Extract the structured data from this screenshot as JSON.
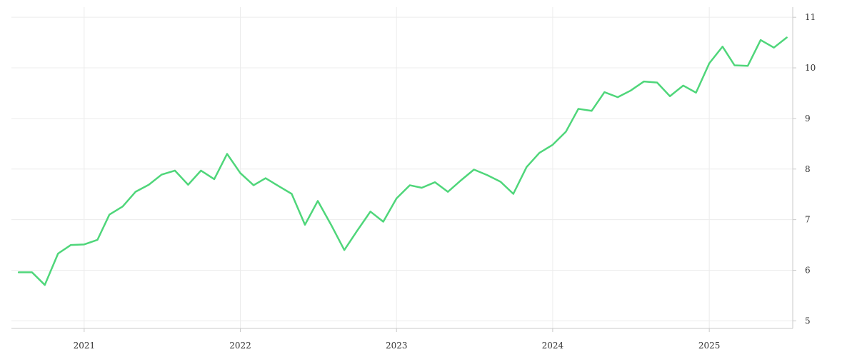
{
  "chart_data": {
    "type": "line",
    "title": "",
    "xlabel": "",
    "ylabel": "",
    "x_ticks": [
      "2021",
      "2022",
      "2023",
      "2024",
      "2025"
    ],
    "y_ticks": [
      5,
      6,
      7,
      8,
      9,
      10,
      11
    ],
    "ylim": [
      4.85,
      11.2
    ],
    "xlim": [
      "2020-07-15",
      "2025-07-15"
    ],
    "y_axis_position": "right",
    "grid": true,
    "legend": "none",
    "series": [
      {
        "color": "#4fd67a",
        "points": [
          [
            "2020-08-01",
            5.96
          ],
          [
            "2020-09-01",
            5.96
          ],
          [
            "2020-10-01",
            5.71
          ],
          [
            "2020-11-01",
            6.33
          ],
          [
            "2020-12-01",
            6.5
          ],
          [
            "2021-01-01",
            6.51
          ],
          [
            "2021-02-01",
            6.6
          ],
          [
            "2021-03-01",
            7.1
          ],
          [
            "2021-04-01",
            7.26
          ],
          [
            "2021-05-01",
            7.55
          ],
          [
            "2021-06-01",
            7.69
          ],
          [
            "2021-07-01",
            7.89
          ],
          [
            "2021-08-01",
            7.97
          ],
          [
            "2021-09-01",
            7.69
          ],
          [
            "2021-10-01",
            7.97
          ],
          [
            "2021-11-01",
            7.8
          ],
          [
            "2021-12-01",
            8.3
          ],
          [
            "2022-01-01",
            7.92
          ],
          [
            "2022-02-01",
            7.68
          ],
          [
            "2022-03-01",
            7.82
          ],
          [
            "2022-04-01",
            7.66
          ],
          [
            "2022-05-01",
            7.51
          ],
          [
            "2022-06-01",
            6.9
          ],
          [
            "2022-07-01",
            7.37
          ],
          [
            "2022-08-01",
            6.9
          ],
          [
            "2022-09-01",
            6.4
          ],
          [
            "2022-10-01",
            6.78
          ],
          [
            "2022-11-01",
            7.16
          ],
          [
            "2022-12-01",
            6.96
          ],
          [
            "2023-01-01",
            7.42
          ],
          [
            "2023-02-01",
            7.68
          ],
          [
            "2023-03-01",
            7.63
          ],
          [
            "2023-04-01",
            7.74
          ],
          [
            "2023-05-01",
            7.55
          ],
          [
            "2023-06-01",
            7.78
          ],
          [
            "2023-07-01",
            7.99
          ],
          [
            "2023-08-01",
            7.88
          ],
          [
            "2023-09-01",
            7.75
          ],
          [
            "2023-10-01",
            7.51
          ],
          [
            "2023-11-01",
            8.04
          ],
          [
            "2023-12-01",
            8.32
          ],
          [
            "2024-01-01",
            8.48
          ],
          [
            "2024-02-01",
            8.74
          ],
          [
            "2024-03-01",
            9.19
          ],
          [
            "2024-04-01",
            9.15
          ],
          [
            "2024-05-01",
            9.52
          ],
          [
            "2024-06-01",
            9.42
          ],
          [
            "2024-07-01",
            9.55
          ],
          [
            "2024-08-01",
            9.73
          ],
          [
            "2024-09-01",
            9.71
          ],
          [
            "2024-10-01",
            9.44
          ],
          [
            "2024-11-01",
            9.65
          ],
          [
            "2024-12-01",
            9.51
          ],
          [
            "2025-01-01",
            10.09
          ],
          [
            "2025-02-01",
            10.42
          ],
          [
            "2025-03-01",
            10.05
          ],
          [
            "2025-04-01",
            10.04
          ],
          [
            "2025-05-01",
            10.55
          ],
          [
            "2025-06-01",
            10.4
          ],
          [
            "2025-07-01",
            10.6
          ]
        ]
      }
    ]
  }
}
